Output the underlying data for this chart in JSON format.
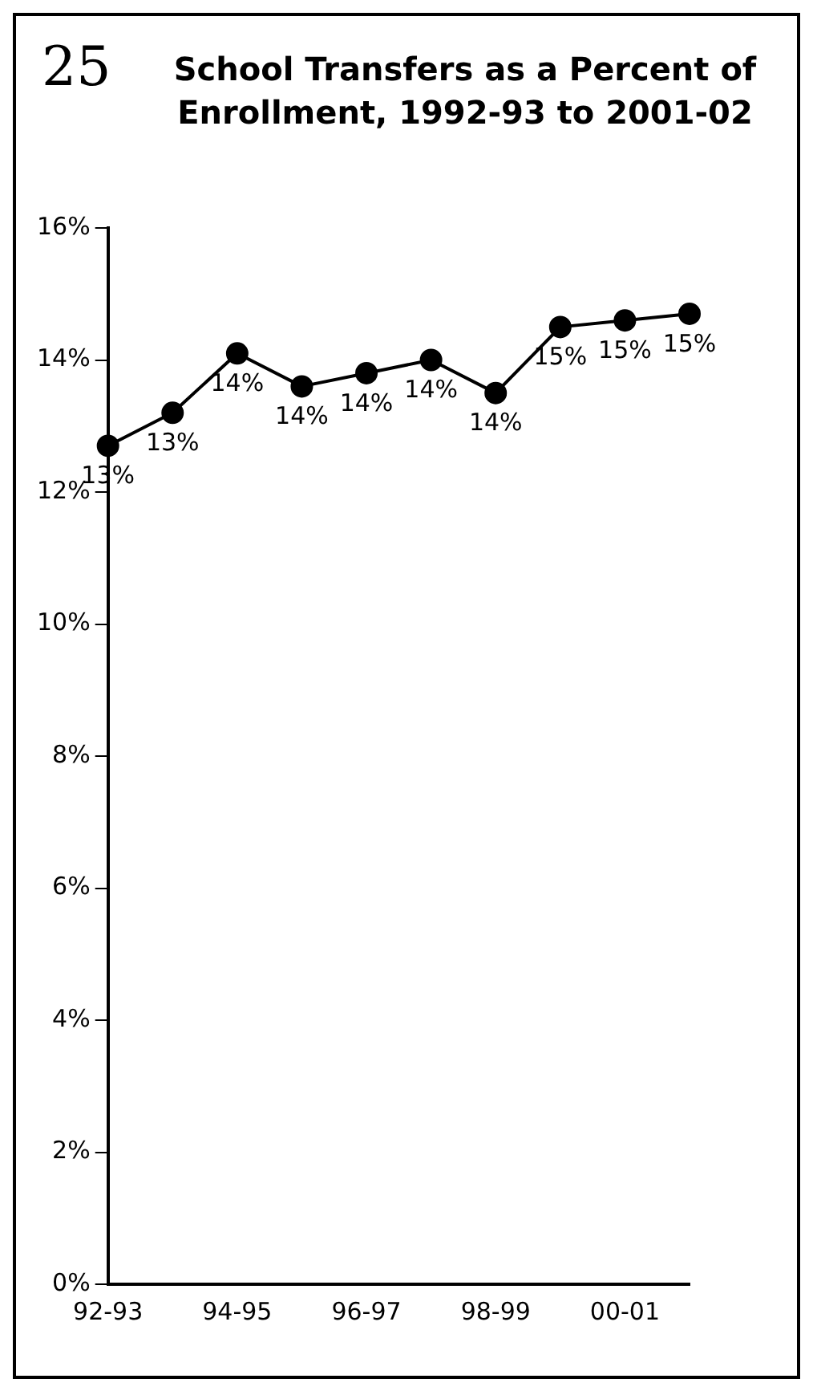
{
  "chart_data": {
    "type": "line",
    "title": "School Transfers as a Percent of Enrollment, 1992-93 to 2001-02",
    "categories": [
      "92-93",
      null,
      "94-95",
      null,
      "96-97",
      null,
      "98-99",
      null,
      "00-01",
      null
    ],
    "series": [
      {
        "color": "#000000",
        "values": [
          12.7,
          13.2,
          14.1,
          13.6,
          13.8,
          14.0,
          13.5,
          14.5,
          14.6,
          14.7
        ],
        "value_labels": [
          "13%",
          "13%",
          "14%",
          "14%",
          "14%",
          "14%",
          "14%",
          "15%",
          "15%",
          "15%"
        ]
      }
    ],
    "ylim": [
      0,
      16
    ],
    "yticks": [
      {
        "value": 0,
        "label": "0%"
      },
      {
        "value": 2,
        "label": "2%"
      },
      {
        "value": 4,
        "label": "4%"
      },
      {
        "value": 6,
        "label": "6%"
      },
      {
        "value": 8,
        "label": "8%"
      },
      {
        "value": 10,
        "label": "10%"
      },
      {
        "value": 12,
        "label": "12%"
      },
      {
        "value": 14,
        "label": "14%"
      },
      {
        "value": 16,
        "label": "16%"
      }
    ],
    "grid": false,
    "legend": false,
    "marker": "circle",
    "line_style": "solid",
    "annotations": [
      "25"
    ]
  }
}
